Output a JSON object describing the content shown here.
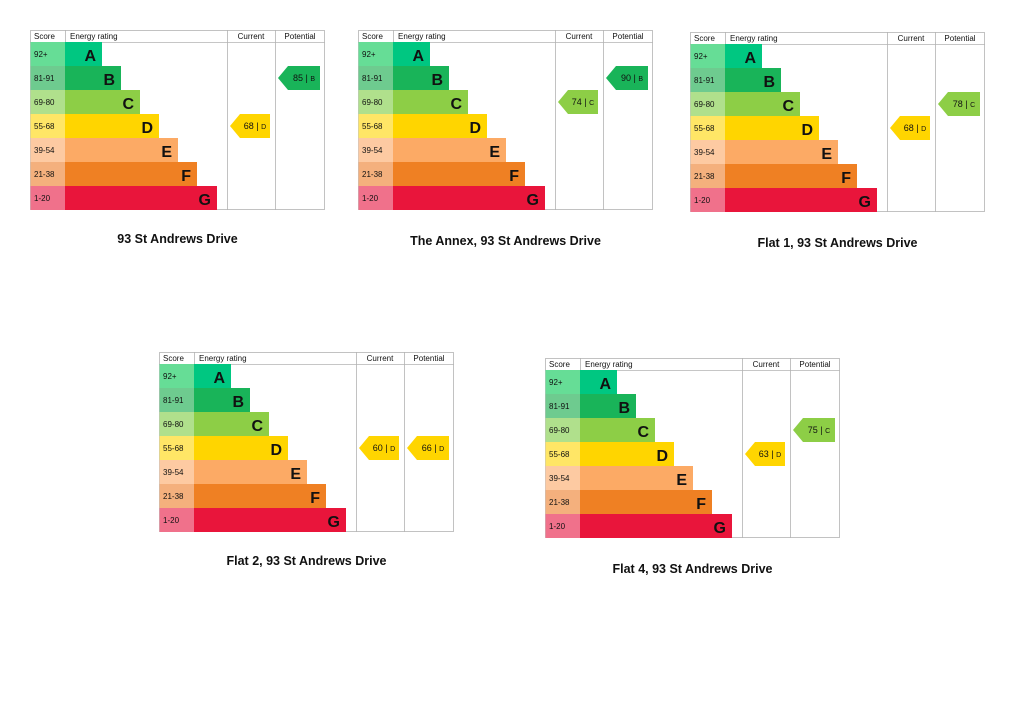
{
  "chart_data": [
    {
      "type": "bar",
      "title": "93 St Andrews Drive",
      "headers": {
        "score": "Score",
        "rating": "Energy rating",
        "current": "Current",
        "potential": "Potential"
      },
      "bands": [
        "A",
        "B",
        "C",
        "D",
        "E",
        "F",
        "G"
      ],
      "score_ranges": [
        "92+",
        "81-91",
        "69-80",
        "55-68",
        "39-54",
        "21-38",
        "1-20"
      ],
      "current": {
        "value": 68,
        "band": "D"
      },
      "potential": {
        "value": 85,
        "band": "B"
      }
    },
    {
      "type": "bar",
      "title": "The Annex, 93 St Andrews Drive",
      "headers": {
        "score": "Score",
        "rating": "Energy rating",
        "current": "Current",
        "potential": "Potential"
      },
      "bands": [
        "A",
        "B",
        "C",
        "D",
        "E",
        "F",
        "G"
      ],
      "score_ranges": [
        "92+",
        "81-91",
        "69-80",
        "55-68",
        "39-54",
        "21-38",
        "1-20"
      ],
      "current": {
        "value": 74,
        "band": "C"
      },
      "potential": {
        "value": 90,
        "band": "B"
      }
    },
    {
      "type": "bar",
      "title": "Flat 1, 93 St Andrews Drive",
      "headers": {
        "score": "Score",
        "rating": "Energy rating",
        "current": "Current",
        "potential": "Potential"
      },
      "bands": [
        "A",
        "B",
        "C",
        "D",
        "E",
        "F",
        "G"
      ],
      "score_ranges": [
        "92+",
        "81-91",
        "69-80",
        "55-68",
        "39-54",
        "21-38",
        "1-20"
      ],
      "current": {
        "value": 68,
        "band": "D"
      },
      "potential": {
        "value": 78,
        "band": "C"
      }
    },
    {
      "type": "bar",
      "title": "Flat 2, 93 St Andrews Drive",
      "headers": {
        "score": "Score",
        "rating": "Energy rating",
        "current": "Current",
        "potential": "Potential"
      },
      "bands": [
        "A",
        "B",
        "C",
        "D",
        "E",
        "F",
        "G"
      ],
      "score_ranges": [
        "92+",
        "81-91",
        "69-80",
        "55-68",
        "39-54",
        "21-38",
        "1-20"
      ],
      "current": {
        "value": 60,
        "band": "D"
      },
      "potential": {
        "value": 66,
        "band": "D"
      }
    },
    {
      "type": "bar",
      "title": "Flat 4, 93 St Andrews Drive",
      "headers": {
        "score": "Score",
        "rating": "Energy rating",
        "current": "Current",
        "potential": "Potential"
      },
      "bands": [
        "A",
        "B",
        "C",
        "D",
        "E",
        "F",
        "G"
      ],
      "score_ranges": [
        "92+",
        "81-91",
        "69-80",
        "55-68",
        "39-54",
        "21-38",
        "1-20"
      ],
      "current": {
        "value": 63,
        "band": "D"
      },
      "potential": {
        "value": 75,
        "band": "C"
      }
    }
  ],
  "colors": {
    "band_main": {
      "A": "#00c781",
      "B": "#19b459",
      "C": "#8dce46",
      "D": "#ffd500",
      "E": "#fcaa65",
      "F": "#ef8023",
      "G": "#e9153b"
    },
    "band_light": {
      "A": "#66dd96",
      "B": "#6ecb8f",
      "C": "#b0e08c",
      "D": "#ffe666",
      "E": "#fdcaa2",
      "F": "#f4b07d",
      "G": "#f0718b"
    },
    "grid": "#b3b3b3",
    "text": "#111111"
  }
}
